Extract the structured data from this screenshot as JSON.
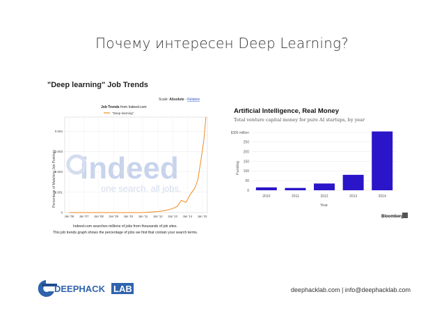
{
  "slide": {
    "title": "Почему интересен Deep Learning?",
    "footer": "deephacklab.com | info@deephacklab.com"
  },
  "logo": {
    "text_main": "DEEPHACK",
    "text_box": "LAB"
  },
  "job_trends": {
    "heading": "\"Deep learning\" Job Trends",
    "scale_prefix": "Scale: ",
    "scale_absolute": "Absolute",
    "scale_sep": " - ",
    "scale_relative": "Relative",
    "chart_title_bold": "Job Trends",
    "chart_title_rest": " from Indeed.com",
    "legend_label": "\"Deep learning\"",
    "watermark_logo": "indeed",
    "watermark_tagline": "one search. all jobs.",
    "footnote_1": "Indeed.com searches millions of jobs from thousands of job sites.",
    "footnote_2": "This job trends graph shows the percentage of jobs we find that contain your search terms."
  },
  "ai_money": {
    "heading": "Artificial Intelligence, Real Money",
    "subheading": "Total venture capital money for pure AI startups, by year",
    "source": "Bloomberg"
  },
  "chart_data": [
    {
      "type": "line",
      "title": "Job Trends from Indeed.com",
      "ylabel": "Percentage of Matching Job Postings",
      "series": [
        {
          "name": "\"Deep learning\"",
          "color": "#f08a1c",
          "x": [
            2006.0,
            2007.0,
            2008.0,
            2009.0,
            2010.0,
            2011.0,
            2012.0,
            2012.5,
            2013.0,
            2013.3,
            2013.6,
            2013.9,
            2014.2,
            2014.5,
            2014.7,
            2014.9,
            2015.1,
            2015.25
          ],
          "y": [
            0,
            0,
            0,
            0,
            0,
            0,
            5e-05,
            0.0001,
            0.0002,
            0.0003,
            0.0006,
            0.0005,
            0.0009,
            0.0012,
            0.0016,
            0.0025,
            0.0035,
            0.0047
          ]
        }
      ],
      "x_ticks": [
        "Jan '06",
        "Jan '07",
        "Jan '08",
        "Jan '09",
        "Jan '10",
        "Jan '11",
        "Jan '12",
        "Jan '13",
        "Jan '14",
        "Jan '15"
      ],
      "y_ticks": [
        "0",
        "0.001",
        "0.002",
        "0.003",
        "0.004"
      ],
      "ylim": [
        0,
        0.0047
      ],
      "grid": true,
      "legend": "top-left"
    },
    {
      "type": "bar",
      "title": "Artificial Intelligence, Real Money",
      "subtitle": "Total venture capital money for pure AI startups, by year",
      "xlabel": "Year",
      "ylabel": "Funding",
      "categories": [
        "2010",
        "2011",
        "2012",
        "2013",
        "2014"
      ],
      "values": [
        15,
        12,
        35,
        80,
        305
      ],
      "y_ticks": [
        "0",
        "50",
        "100",
        "150",
        "200",
        "250",
        "$300 million"
      ],
      "ylim": [
        0,
        300
      ],
      "bar_color": "#2a15c9",
      "grid": true
    }
  ]
}
